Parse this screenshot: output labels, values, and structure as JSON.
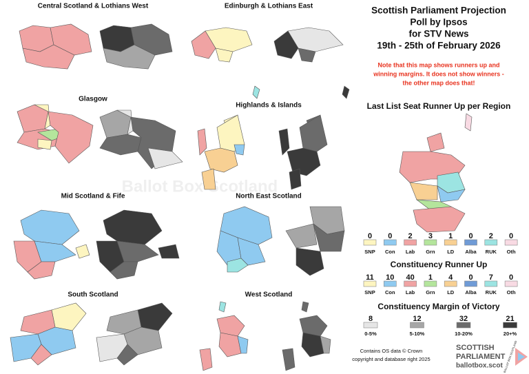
{
  "header": {
    "title_lines": [
      "Scottish Parliament Projection",
      "Poll by Ipsos",
      "for STV News",
      "19th - 25th of February 2026"
    ],
    "note_lines": [
      "Note that this map shows runners up and",
      "winning margins. It does not show winners -",
      "the other map does that!"
    ]
  },
  "regions": [
    "Central Scotland & Lothians West",
    "Edinburgh & Lothians East",
    "Glasgow",
    "Highlands & Islands",
    "Mid Scotland & Fife",
    "North East Scotland",
    "South Scotland",
    "West Scotland"
  ],
  "watermark": "Ballot Box Scotland",
  "list_legend": {
    "title": "Last List Seat Runner Up per Region",
    "items": [
      {
        "count": 0,
        "party": "SNP",
        "color": "#fdf5c0"
      },
      {
        "count": 0,
        "party": "Con",
        "color": "#8fcaf0"
      },
      {
        "count": 2,
        "party": "Lab",
        "color": "#f0a3a3"
      },
      {
        "count": 3,
        "party": "Grn",
        "color": "#b4e59c"
      },
      {
        "count": 1,
        "party": "LD",
        "color": "#f8d093"
      },
      {
        "count": 0,
        "party": "Alba",
        "color": "#6f9bd6"
      },
      {
        "count": 2,
        "party": "RUK",
        "color": "#9ce4e2"
      },
      {
        "count": 0,
        "party": "Oth",
        "color": "#f8dae3"
      }
    ]
  },
  "constituency_legend": {
    "title": "Constituency Runner Up",
    "items": [
      {
        "count": 11,
        "party": "SNP",
        "color": "#fdf5c0"
      },
      {
        "count": 10,
        "party": "Con",
        "color": "#8fcaf0"
      },
      {
        "count": 40,
        "party": "Lab",
        "color": "#f0a3a3"
      },
      {
        "count": 1,
        "party": "Grn",
        "color": "#b4e59c"
      },
      {
        "count": 4,
        "party": "LD",
        "color": "#f8d093"
      },
      {
        "count": 0,
        "party": "Alba",
        "color": "#6f9bd6"
      },
      {
        "count": 7,
        "party": "RUK",
        "color": "#9ce4e2"
      },
      {
        "count": 0,
        "party": "Oth",
        "color": "#f8dae3"
      }
    ]
  },
  "margin_legend": {
    "title": "Constituency Margin of Victory",
    "items": [
      {
        "count": 8,
        "label": "0-5%",
        "color": "#e6e6e6"
      },
      {
        "count": 12,
        "label": "5-10%",
        "color": "#a6a6a6"
      },
      {
        "count": 32,
        "label": "10-20%",
        "color": "#6b6b6b"
      },
      {
        "count": 21,
        "label": "20+%",
        "color": "#3a3a3a"
      }
    ]
  },
  "footer": {
    "lines": [
      "Contains OS data © Crown",
      "copyright and database right 2025"
    ]
  },
  "logo": {
    "line1": "SCOTTISH",
    "line2": "PARLIAMENT",
    "url": "ballotbox.scot",
    "side": "BALLOT BOX SCOTLAND"
  }
}
